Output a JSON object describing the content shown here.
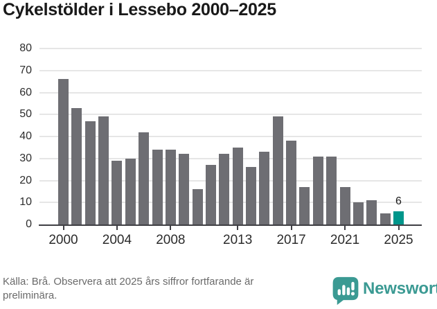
{
  "title": "Cykelstölder i Lessebo 2000–2025",
  "chart_data": {
    "type": "bar",
    "x": [
      2000,
      2001,
      2002,
      2003,
      2004,
      2005,
      2006,
      2007,
      2008,
      2009,
      2010,
      2011,
      2012,
      2013,
      2014,
      2015,
      2016,
      2017,
      2018,
      2019,
      2020,
      2021,
      2022,
      2023,
      2024,
      2025
    ],
    "values": [
      66,
      53,
      47,
      49,
      29,
      30,
      42,
      34,
      34,
      32,
      16,
      27,
      32,
      35,
      26,
      33,
      49,
      38,
      17,
      31,
      31,
      17,
      10,
      11,
      5,
      6
    ],
    "title": "Cykelstölder i Lessebo 2000–2025",
    "xlabel": "",
    "ylabel": "",
    "ylim": [
      0,
      80
    ],
    "yticks": [
      0,
      10,
      20,
      30,
      40,
      50,
      60,
      70,
      80
    ],
    "xtick_years": [
      2000,
      2004,
      2008,
      2013,
      2017,
      2021,
      2025
    ],
    "xtick_labels": [
      "2000",
      "2004",
      "2008",
      "2013",
      "2017",
      "2021",
      "2025"
    ],
    "grid": "horizontal",
    "legend": "none",
    "highlight_year": 2025,
    "highlight_value_label": "6",
    "bar_color": "#6e6e73",
    "highlight_color": "#00968b"
  },
  "footer": {
    "source": "Källa: Brå. Observera att 2025 års siffror fortfarande är preliminära.",
    "brand": "Newsworthy"
  },
  "colors": {
    "title_text": "#191919",
    "axis_text": "#2d2d2d",
    "grid": "#e6e6e6",
    "axis_line": "#3f3f44",
    "footer_text": "#6a6a6a",
    "brand_teal": "#3b9a93"
  }
}
